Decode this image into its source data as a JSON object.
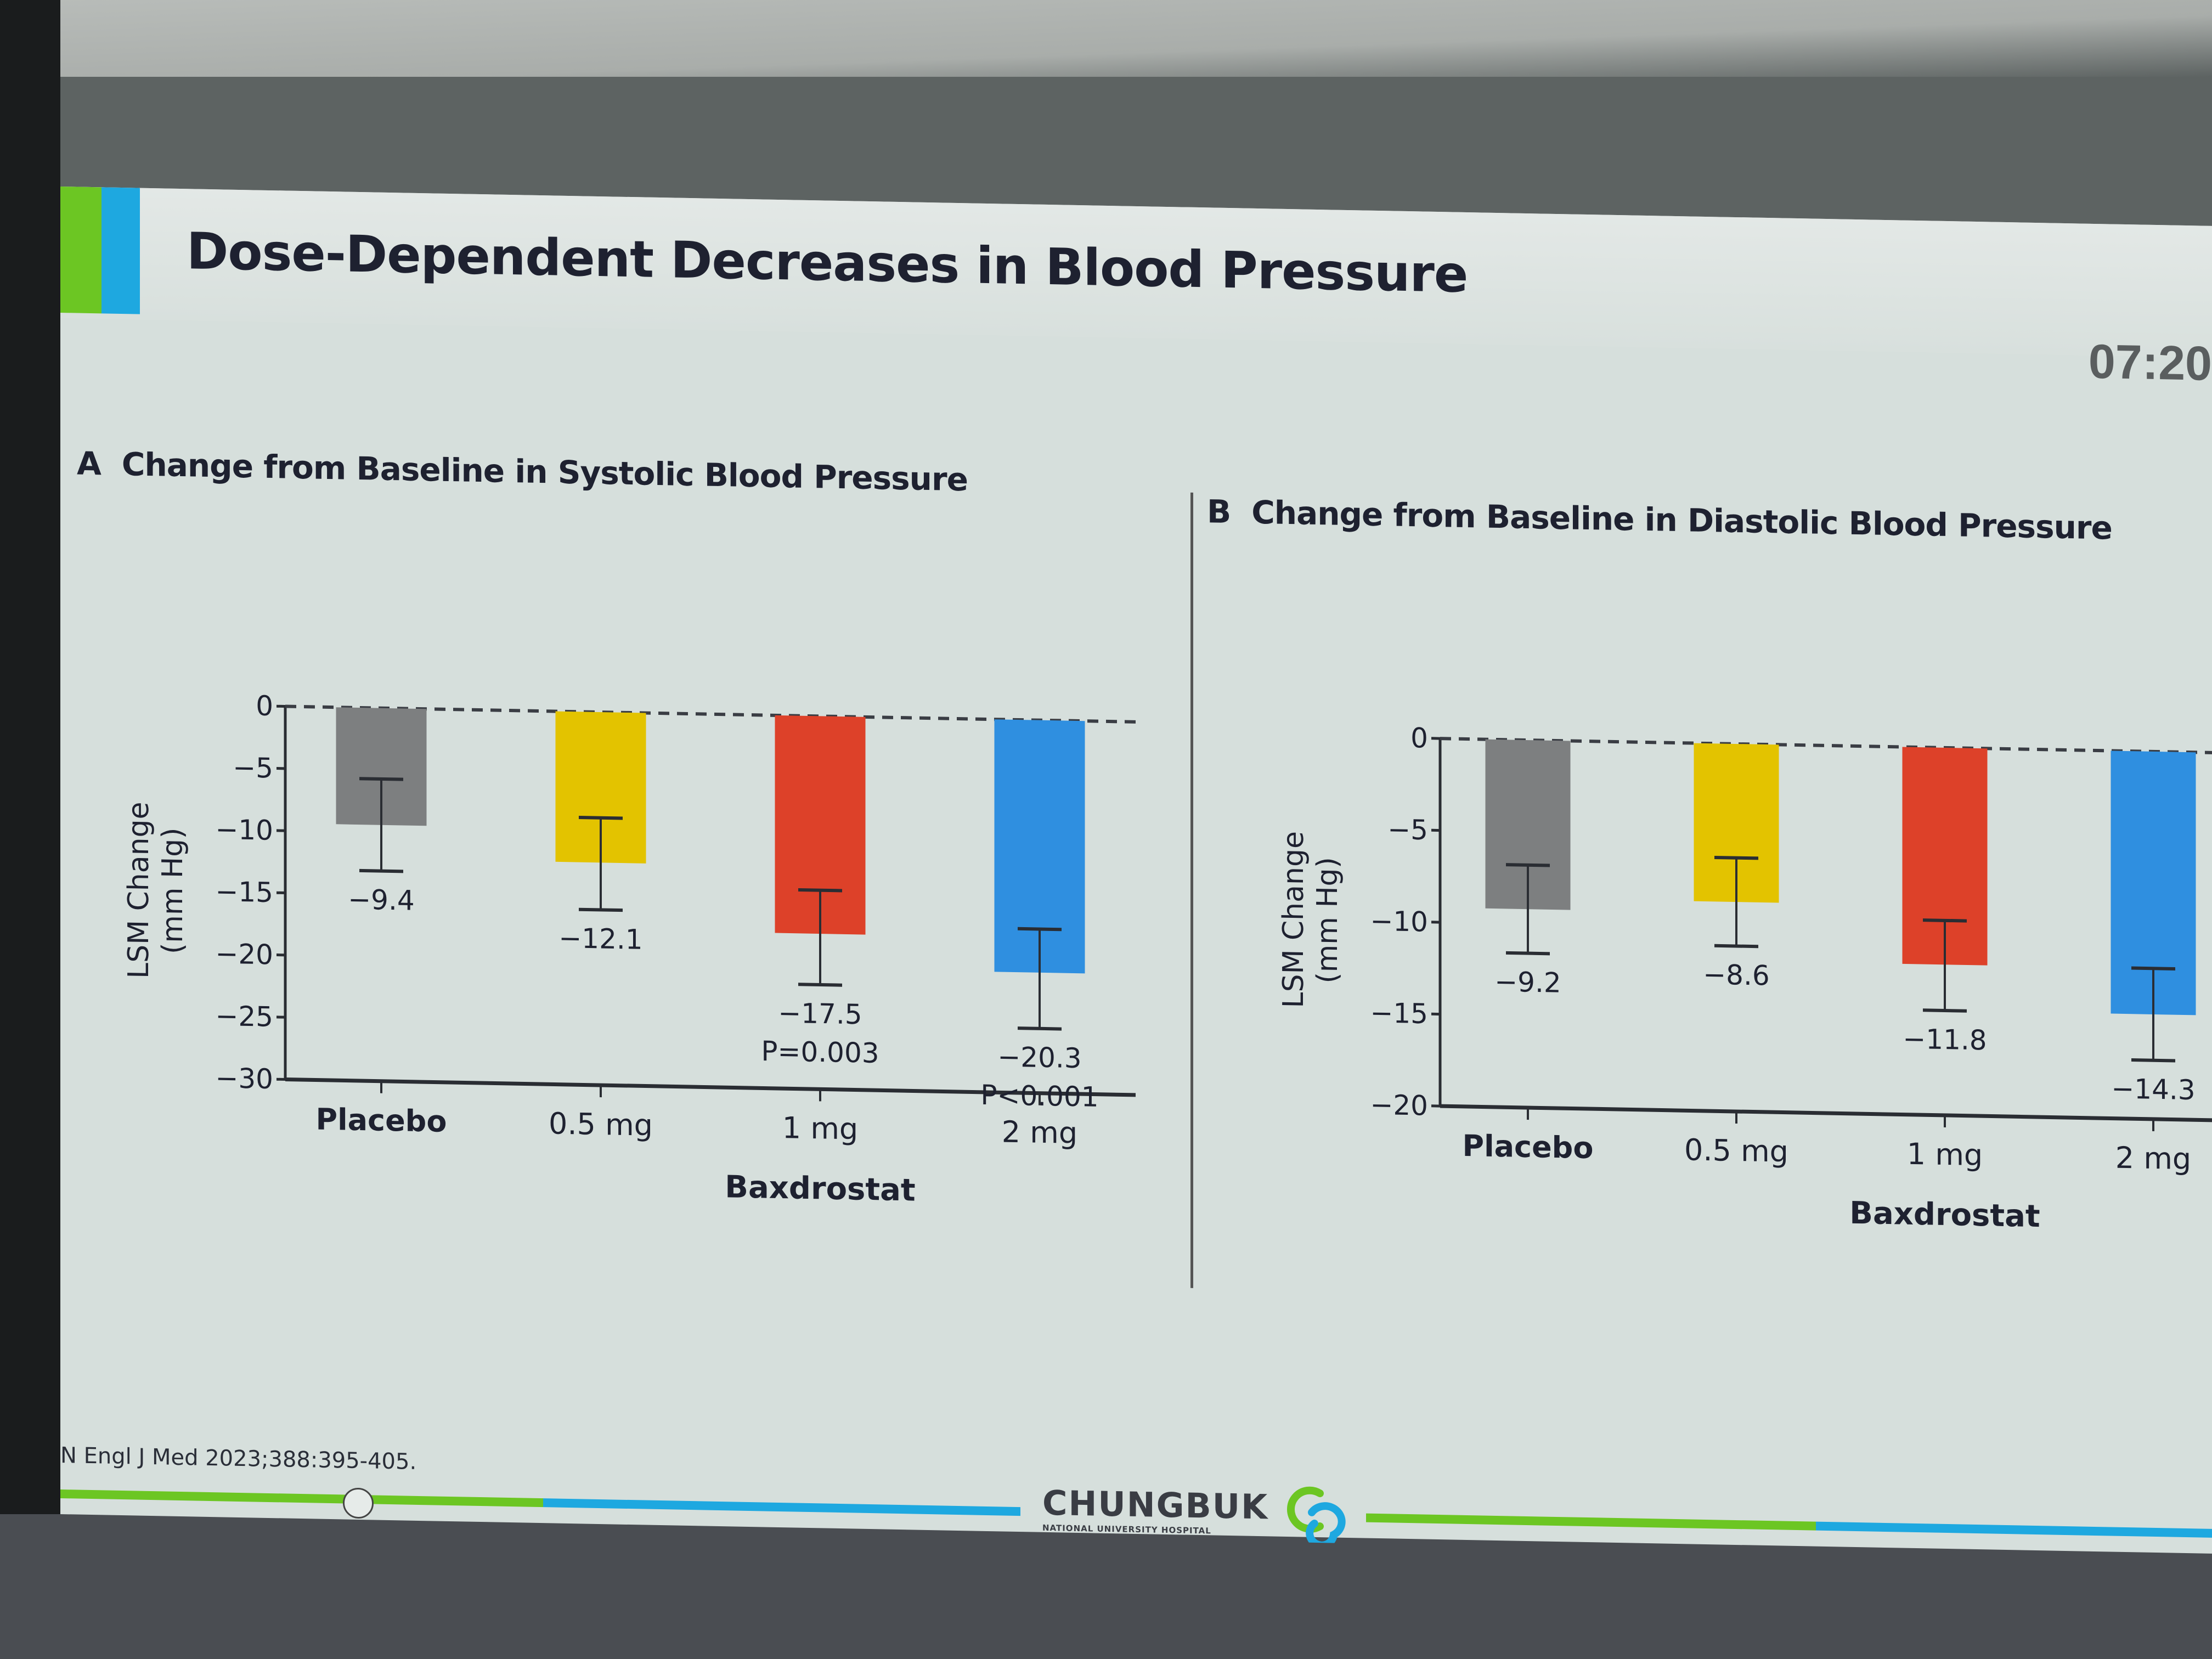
{
  "slide": {
    "title": "Dose-Dependent Decreases in Blood Pressure",
    "timer": "07:20",
    "reference": "N Engl J Med 2023;388:395-405.",
    "logo": {
      "name": "CHUNGBUK",
      "subtitle": "NATIONAL UNIVERSITY HOSPITAL"
    },
    "colors": {
      "accent_green": "#6cc623",
      "accent_blue": "#1ea8e0"
    }
  },
  "chart_data": [
    {
      "panel": "A",
      "type": "bar",
      "title": "Change from Baseline in Systolic Blood Pressure",
      "ylabel": "LSM Change (mm Hg)",
      "ylabel_lines": [
        "LSM Change",
        "(mm Hg)"
      ],
      "xlabel": "Baxdrostat",
      "ylim": [
        -30,
        0
      ],
      "yticks": [
        0,
        -5,
        -10,
        -15,
        -20,
        -25,
        -30
      ],
      "ytick_labels": [
        "0",
        "−5",
        "−10",
        "−15",
        "−20",
        "−25",
        "−30"
      ],
      "categories": [
        "Placebo",
        "0.5 mg",
        "1 mg",
        "2 mg"
      ],
      "values": [
        -9.4,
        -12.1,
        -17.5,
        -20.3
      ],
      "error_low": [
        -13.1,
        -15.9,
        -21.6,
        -24.8
      ],
      "error_high": [
        -5.7,
        -8.5,
        -14.0,
        -16.8
      ],
      "value_labels": [
        "−9.4",
        "−12.1",
        "−17.5",
        "−20.3"
      ],
      "p_values": [
        "",
        "",
        "P=0.003",
        "P<0.001"
      ],
      "colors": [
        "#7d7f80",
        "#e3c300",
        "#dd4129",
        "#2f8fe0"
      ],
      "reference_line": 0,
      "grid": false
    },
    {
      "panel": "B",
      "type": "bar",
      "title": "Change from Baseline in Diastolic Blood Pressure",
      "ylabel": "LSM Change (mm Hg)",
      "ylabel_lines": [
        "LSM Change",
        "(mm Hg)"
      ],
      "xlabel": "Baxdrostat",
      "ylim": [
        -20,
        0
      ],
      "yticks": [
        0,
        -5,
        -10,
        -15,
        -20
      ],
      "ytick_labels": [
        "0",
        "−5",
        "−10",
        "−15",
        "−20"
      ],
      "categories": [
        "Placebo",
        "0.5 mg",
        "1 mg",
        "2 mg"
      ],
      "values": [
        -9.2,
        -8.6,
        -11.8,
        -14.3
      ],
      "error_low": [
        -11.6,
        -11.0,
        -14.3,
        -16.8
      ],
      "error_high": [
        -6.8,
        -6.2,
        -9.4,
        -11.8
      ],
      "value_labels": [
        "−9.2",
        "−8.6",
        "−11.8",
        "−14.3"
      ],
      "p_values": [
        "",
        "",
        "",
        ""
      ],
      "colors": [
        "#7d7f80",
        "#e3c300",
        "#dd4129",
        "#2f8fe0"
      ],
      "reference_line": 0,
      "grid": false
    }
  ]
}
